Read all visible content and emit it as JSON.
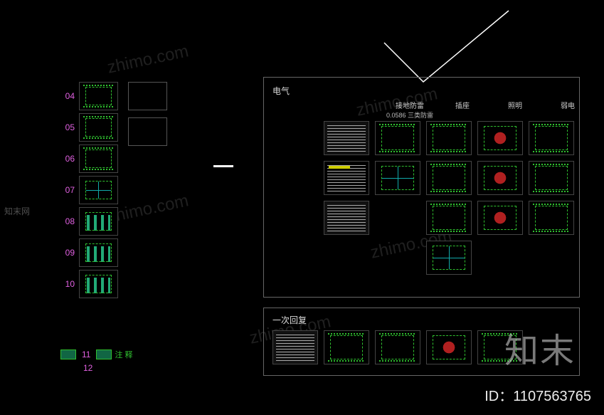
{
  "watermark_url": "zhimo.com",
  "watermark_cn": "知末网",
  "brand_text": "知末",
  "id_label": "ID：1107563765",
  "left_rows": [
    {
      "num": "04",
      "type": "green"
    },
    {
      "num": "05",
      "type": "green"
    },
    {
      "num": "06",
      "type": "green"
    },
    {
      "num": "07",
      "type": "cyangrid"
    },
    {
      "num": "08",
      "type": "section"
    },
    {
      "num": "09",
      "type": "section"
    },
    {
      "num": "10",
      "type": "section"
    }
  ],
  "bottom_nums": {
    "a": "11",
    "b": "12",
    "label": "注 释"
  },
  "main_panel": {
    "title": "电气",
    "headers": [
      {
        "label": ""
      },
      {
        "label": "接地防雷",
        "sub": "0.0586  三类防雷"
      },
      {
        "label": "插座"
      },
      {
        "label": "照明"
      },
      {
        "label": "弱电"
      }
    ],
    "rows": [
      [
        "doc",
        "green",
        "green",
        "redfill",
        "green"
      ],
      [
        "docY",
        "cyangrid",
        "green",
        "redfill",
        "green"
      ],
      [
        "doc",
        "",
        "green",
        "redfill",
        "green"
      ],
      [
        "",
        "",
        "cyangrid",
        "",
        ""
      ]
    ]
  },
  "sub_panel": {
    "title": "一次回复",
    "cells": [
      "doc",
      "green",
      "green",
      "redfill",
      "green"
    ]
  },
  "colors": {
    "bg": "#000000",
    "border": "#666666",
    "numColor": "#e060e0",
    "green": "#2fbf2f",
    "red": "#b02020",
    "cyan": "#11aaaa",
    "text": "#dddddd"
  }
}
